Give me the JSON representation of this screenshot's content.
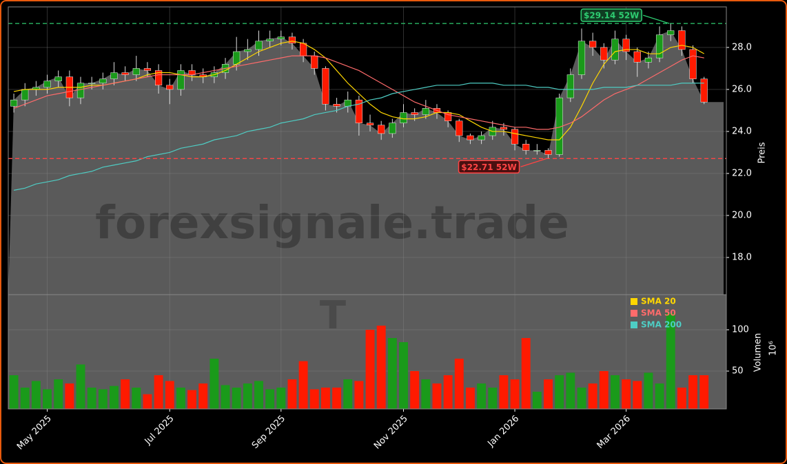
{
  "chart_data": {
    "type": "candlestick",
    "categories": [
      null,
      null,
      null,
      "May 2025",
      null,
      null,
      null,
      null,
      null,
      null,
      null,
      null,
      null,
      null,
      "Jul 2025",
      null,
      null,
      null,
      null,
      null,
      null,
      null,
      null,
      null,
      "Sep 2025",
      null,
      null,
      null,
      null,
      null,
      null,
      null,
      null,
      null,
      null,
      "Nov 2025",
      null,
      null,
      null,
      null,
      null,
      null,
      null,
      null,
      null,
      "Jan 2026",
      null,
      null,
      null,
      null,
      null,
      null,
      null,
      null,
      null,
      "Mar 2026",
      null,
      null,
      null,
      null,
      null,
      null,
      null
    ],
    "open": [
      25.2,
      25.5,
      26.0,
      26.1,
      26.4,
      26.6,
      25.6,
      26.3,
      26.3,
      26.5,
      26.8,
      26.7,
      27.0,
      26.9,
      26.2,
      26.0,
      26.9,
      26.7,
      26.6,
      26.8,
      27.2,
      27.8,
      27.9,
      28.3,
      28.4,
      28.5,
      28.2,
      27.6,
      27.0,
      25.3,
      25.2,
      25.5,
      24.4,
      24.3,
      23.9,
      24.4,
      24.9,
      24.8,
      25.1,
      24.9,
      24.5,
      23.8,
      23.6,
      23.8,
      24.2,
      24.1,
      23.4,
      23.1,
      23.1,
      22.9,
      25.6,
      26.7,
      28.3,
      28.0,
      27.4,
      28.4,
      27.8,
      27.3,
      27.5,
      28.6,
      28.8,
      27.9,
      26.5
    ],
    "high": [
      25.8,
      26.3,
      26.4,
      26.7,
      26.9,
      26.9,
      26.6,
      26.6,
      26.8,
      27.3,
      27.1,
      27.6,
      27.3,
      27.2,
      26.5,
      27.2,
      27.2,
      27.0,
      27.1,
      27.5,
      28.5,
      28.4,
      28.8,
      28.8,
      28.8,
      28.7,
      28.4,
      27.8,
      27.1,
      25.6,
      25.9,
      25.7,
      24.8,
      24.5,
      24.6,
      25.3,
      25.1,
      25.5,
      25.3,
      25.0,
      24.6,
      23.9,
      24.0,
      24.5,
      24.4,
      24.2,
      23.6,
      23.4,
      23.2,
      25.8,
      27.0,
      28.9,
      28.7,
      28.2,
      28.8,
      28.6,
      28.0,
      27.8,
      29.0,
      29.14,
      29.0,
      28.1,
      26.6
    ],
    "low": [
      24.9,
      25.2,
      25.7,
      25.8,
      26.1,
      25.2,
      25.3,
      26.0,
      26.0,
      26.2,
      26.4,
      26.4,
      26.6,
      25.8,
      25.3,
      25.7,
      26.4,
      26.3,
      26.3,
      26.5,
      26.9,
      27.4,
      27.6,
      28.0,
      28.1,
      27.9,
      27.3,
      26.7,
      25.0,
      24.9,
      24.9,
      23.8,
      24.0,
      23.6,
      23.7,
      24.2,
      24.5,
      24.6,
      24.6,
      24.2,
      23.5,
      23.4,
      23.4,
      23.6,
      23.8,
      23.1,
      22.9,
      22.9,
      22.71,
      22.8,
      25.4,
      26.5,
      27.6,
      27.0,
      27.2,
      27.4,
      26.6,
      27.0,
      27.3,
      28.3,
      27.6,
      26.3,
      25.3
    ],
    "close": [
      25.5,
      26.0,
      26.1,
      26.4,
      26.6,
      25.6,
      26.3,
      26.3,
      26.5,
      26.8,
      26.7,
      27.0,
      26.9,
      26.2,
      26.0,
      26.9,
      26.7,
      26.6,
      26.8,
      27.2,
      27.8,
      27.9,
      28.3,
      28.4,
      28.5,
      28.2,
      27.6,
      27.0,
      25.3,
      25.2,
      25.5,
      24.4,
      24.3,
      23.9,
      24.4,
      24.9,
      24.8,
      25.1,
      24.9,
      24.5,
      23.8,
      23.6,
      23.8,
      24.2,
      24.1,
      23.4,
      23.1,
      23.1,
      22.9,
      25.6,
      26.7,
      28.3,
      28.0,
      27.4,
      28.4,
      27.8,
      27.3,
      27.5,
      28.6,
      28.8,
      27.9,
      26.5,
      25.4
    ],
    "up_color": "#1a9a1a",
    "down_color": "#ff1a00",
    "area_color": "#5a5a5a",
    "series": [
      {
        "name": "SMA 20",
        "color": "#ffd700",
        "values": [
          25.9,
          26.0,
          26.0,
          26.0,
          26.1,
          26.1,
          26.1,
          26.2,
          26.2,
          26.3,
          26.4,
          26.5,
          26.7,
          26.8,
          26.8,
          26.7,
          26.6,
          26.6,
          26.7,
          26.9,
          27.2,
          27.5,
          27.8,
          28.0,
          28.2,
          28.3,
          28.2,
          27.9,
          27.5,
          26.9,
          26.3,
          25.8,
          25.3,
          24.9,
          24.7,
          24.6,
          24.6,
          24.7,
          24.9,
          24.9,
          24.8,
          24.5,
          24.2,
          24.0,
          24.0,
          23.9,
          23.8,
          23.7,
          23.6,
          23.6,
          24.2,
          25.2,
          26.3,
          27.2,
          27.8,
          27.9,
          27.9,
          27.7,
          27.7,
          28.0,
          28.1,
          28.0,
          27.7
        ]
      },
      {
        "name": "SMA 50",
        "color": "#ff6b6b",
        "values": [
          25.1,
          25.3,
          25.5,
          25.7,
          25.8,
          25.9,
          26.0,
          26.1,
          26.2,
          26.3,
          26.4,
          26.5,
          26.6,
          26.7,
          26.7,
          26.7,
          26.7,
          26.8,
          26.9,
          27.0,
          27.1,
          27.2,
          27.3,
          27.4,
          27.5,
          27.6,
          27.6,
          27.6,
          27.5,
          27.3,
          27.1,
          26.9,
          26.6,
          26.3,
          26.0,
          25.7,
          25.4,
          25.2,
          25.0,
          24.8,
          24.7,
          24.6,
          24.5,
          24.4,
          24.3,
          24.2,
          24.2,
          24.1,
          24.1,
          24.2,
          24.4,
          24.7,
          25.1,
          25.5,
          25.8,
          26.0,
          26.2,
          26.5,
          26.8,
          27.1,
          27.4,
          27.6,
          27.5
        ]
      },
      {
        "name": "SMA 200",
        "color": "#4ecdc4",
        "values": [
          21.2,
          21.3,
          21.5,
          21.6,
          21.7,
          21.9,
          22.0,
          22.1,
          22.3,
          22.4,
          22.5,
          22.6,
          22.8,
          22.9,
          23.0,
          23.2,
          23.3,
          23.4,
          23.6,
          23.7,
          23.8,
          24.0,
          24.1,
          24.2,
          24.4,
          24.5,
          24.6,
          24.8,
          24.9,
          25.0,
          25.2,
          25.3,
          25.5,
          25.6,
          25.8,
          25.9,
          26.0,
          26.1,
          26.2,
          26.2,
          26.2,
          26.3,
          26.3,
          26.3,
          26.2,
          26.2,
          26.2,
          26.1,
          26.1,
          26.0,
          26.0,
          26.0,
          26.0,
          26.1,
          26.1,
          26.1,
          26.2,
          26.2,
          26.2,
          26.2,
          26.3,
          26.3,
          26.3
        ]
      }
    ],
    "ylim": [
      16.23,
      29.93
    ],
    "yticks": [
      {
        "value": 18,
        "label": "18.0"
      },
      {
        "value": 20,
        "label": "20.0"
      },
      {
        "value": 22,
        "label": "22.0"
      },
      {
        "value": 24,
        "label": "24.0"
      },
      {
        "value": 26,
        "label": "26.0"
      },
      {
        "value": 28,
        "label": "28.0"
      }
    ],
    "ylabel": "Preis",
    "grid": true,
    "annotations": [
      {
        "text": "$29.14 52W",
        "value": 29.14,
        "color": "#2ecc71"
      },
      {
        "text": "$22.71 52W",
        "value": 22.71,
        "color": "#ff4444"
      }
    ],
    "watermark": "forexsignale.trade",
    "logo": "T",
    "volume": {
      "ylabel": "Volumen",
      "offset_label": "10⁶",
      "ylim": [
        4.2,
        142.5
      ],
      "yticks": [
        50,
        100
      ],
      "values": [
        45,
        30,
        38,
        28,
        40,
        35,
        58,
        30,
        28,
        32,
        40,
        30,
        22,
        45,
        38,
        30,
        27,
        35,
        65,
        33,
        30,
        35,
        38,
        28,
        30,
        40,
        62,
        28,
        30,
        30,
        40,
        38,
        100,
        105,
        90,
        85,
        50,
        40,
        35,
        45,
        65,
        30,
        35,
        30,
        45,
        40,
        90,
        25,
        40,
        45,
        48,
        30,
        35,
        50,
        45,
        40,
        38,
        48,
        35,
        120,
        30,
        45,
        45
      ]
    }
  }
}
